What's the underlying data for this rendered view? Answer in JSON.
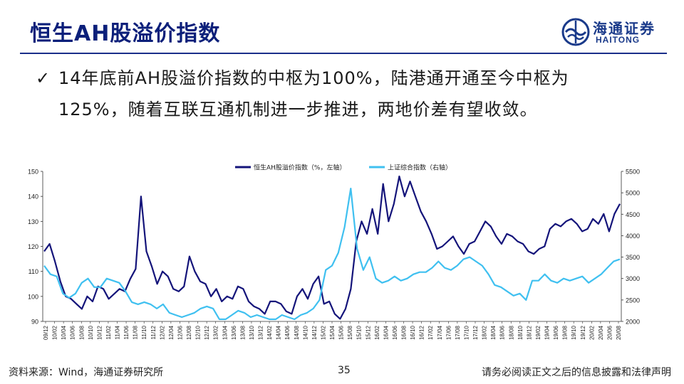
{
  "header": {
    "title": "恒生AH股溢价指数",
    "logo_cn": "海通证券",
    "logo_en": "HAITONG"
  },
  "bullet": {
    "line1": "14年底前AH股溢价指数的中枢为100%，陆港通开通至今中枢为",
    "line2": "125%，随着互联互通机制进一步推进，两地价差有望收敛。"
  },
  "footer": {
    "source": "资料来源：Wind，海通证券研究所",
    "page": "35",
    "note": "请务必阅读正文之后的信息披露和法律声明"
  },
  "colors": {
    "title": "#0b1f7a",
    "ah_series": "#14147a",
    "sh_series": "#3fc0f0",
    "rule": "#1a2f8a"
  },
  "chart_data": {
    "type": "line",
    "legend_position": "top",
    "grid": false,
    "x_ticks": [
      "09/12",
      "10/02",
      "10/04",
      "10/06",
      "10/08",
      "10/10",
      "10/12",
      "11/02",
      "11/04",
      "11/06",
      "11/08",
      "11/10",
      "11/12",
      "12/02",
      "12/04",
      "12/06",
      "12/08",
      "12/10",
      "12/12",
      "13/02",
      "13/04",
      "13/06",
      "13/08",
      "13/10",
      "13/12",
      "14/02",
      "14/04",
      "14/06",
      "14/08",
      "14/10",
      "14/12",
      "15/02",
      "15/04",
      "15/06",
      "15/08",
      "15/10",
      "15/12",
      "16/02",
      "16/04",
      "16/06",
      "16/08",
      "16/10",
      "16/12",
      "17/02",
      "17/04",
      "17/06",
      "17/08",
      "17/10",
      "17/12",
      "18/02",
      "18/04",
      "18/06",
      "18/08",
      "18/10",
      "18/12",
      "19/02",
      "19/04",
      "19/06",
      "19/08",
      "19/10",
      "19/12",
      "20/02",
      "20/04",
      "20/06",
      "20/08"
    ],
    "y_left": {
      "min": 90,
      "max": 150,
      "ticks": [
        90,
        100,
        110,
        120,
        130,
        140,
        150
      ]
    },
    "y_right": {
      "min": 2000,
      "max": 5500,
      "ticks": [
        2000,
        2500,
        3000,
        3500,
        4000,
        4500,
        5000,
        5500
      ]
    },
    "series": [
      {
        "name": "恒生AH股溢价指数（%，左轴）",
        "axis": "left",
        "values": [
          118,
          121,
          114,
          106,
          100,
          99,
          97,
          95,
          100,
          98,
          104,
          103,
          99,
          101,
          103,
          102,
          107,
          111,
          140,
          118,
          112,
          105,
          110,
          108,
          103,
          102,
          104,
          116,
          110,
          106,
          105,
          100,
          103,
          98,
          100,
          99,
          104,
          103,
          98,
          96,
          95,
          93,
          98,
          98,
          97,
          94,
          93,
          100,
          103,
          99,
          105,
          108,
          97,
          98,
          93,
          91,
          95,
          103,
          122,
          130,
          125,
          135,
          125,
          145,
          130,
          137,
          148,
          140,
          146,
          140,
          134,
          130,
          125,
          119,
          120,
          122,
          124,
          120,
          117,
          121,
          122,
          126,
          130,
          128,
          124,
          121,
          125,
          124,
          122,
          121,
          118,
          117,
          119,
          120,
          127,
          129,
          128,
          130,
          131,
          129,
          126,
          127,
          131,
          129,
          133,
          126,
          133,
          137
        ]
      },
      {
        "name": "上证综合指数（右轴）",
        "axis": "right",
        "values": [
          3300,
          3100,
          3050,
          2650,
          2550,
          2650,
          2900,
          3000,
          2800,
          2800,
          3000,
          2950,
          2900,
          2700,
          2450,
          2400,
          2450,
          2400,
          2300,
          2400,
          2200,
          2150,
          2100,
          2150,
          2200,
          2300,
          2350,
          2300,
          2050,
          2050,
          2150,
          2250,
          2200,
          2100,
          2150,
          2100,
          2050,
          2050,
          2150,
          2100,
          2050,
          2150,
          2200,
          2300,
          2500,
          3200,
          3300,
          3600,
          4200,
          5100,
          3700,
          3200,
          3500,
          3000,
          2900,
          2950,
          3050,
          2950,
          3000,
          3100,
          3150,
          3150,
          3250,
          3400,
          3250,
          3200,
          3300,
          3450,
          3500,
          3400,
          3300,
          3100,
          2850,
          2800,
          2700,
          2600,
          2650,
          2500,
          2950,
          2950,
          3100,
          2950,
          2900,
          3000,
          2950,
          3000,
          3050,
          2900,
          3000,
          3100,
          3250,
          3400,
          3450
        ]
      }
    ]
  }
}
